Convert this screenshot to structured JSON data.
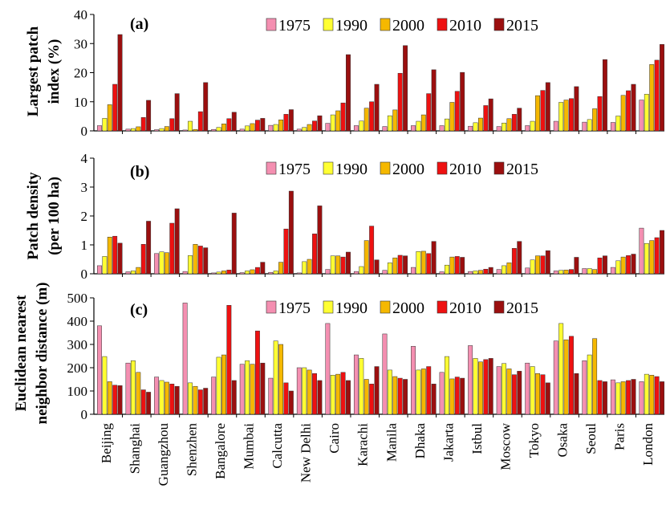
{
  "colors": {
    "s1975": "#f48fb1",
    "s1990": "#ffff33",
    "s2000": "#f5b800",
    "s2010": "#ee1111",
    "s2015": "#9b0f0f"
  },
  "chart_data": [
    {
      "type": "bar",
      "panel": "(a)",
      "title": "",
      "ylabel": [
        "Largest patch",
        "index (%)"
      ],
      "ylim": [
        0,
        40
      ],
      "yticks": [
        0,
        10,
        20,
        30,
        40
      ],
      "categories": [
        "Beijing",
        "Shanghai",
        "Guangzhou",
        "Shenzhen",
        "Bangalore",
        "Mumbai",
        "Calcutta",
        "New Delhi",
        "Cairo",
        "Karachi",
        "Manila",
        "Dhaka",
        "Jakarta",
        "Istbul",
        "Moscow",
        "Tokyo",
        "Osaka",
        "Seoul",
        "Paris",
        "London"
      ],
      "legend": [
        "1975",
        "1990",
        "2000",
        "2010",
        "2015"
      ],
      "series": [
        {
          "name": "1975",
          "values": [
            1.8,
            0.6,
            0.4,
            0.3,
            0.5,
            0.6,
            1.9,
            0.6,
            2.6,
            1.8,
            1.5,
            1.8,
            1.8,
            1.6,
            1.5,
            1.8,
            3.3,
            3.0,
            2.9,
            10.6
          ]
        },
        {
          "name": "1990",
          "values": [
            4.3,
            0.8,
            0.8,
            3.3,
            1.2,
            1.7,
            2.2,
            1.2,
            5.5,
            3.4,
            5.2,
            3.3,
            4.1,
            2.8,
            2.7,
            3.3,
            9.8,
            3.9,
            5.1,
            12.6
          ]
        },
        {
          "name": "2000",
          "values": [
            9.0,
            1.4,
            1.5,
            0.5,
            2.4,
            2.5,
            3.8,
            2.2,
            6.9,
            7.8,
            7.2,
            5.5,
            9.8,
            4.4,
            4.2,
            12.1,
            10.6,
            7.6,
            12.2,
            22.8
          ]
        },
        {
          "name": "2010",
          "values": [
            16.0,
            4.6,
            4.2,
            6.6,
            4.2,
            3.7,
            5.7,
            3.4,
            9.6,
            10.0,
            19.8,
            12.8,
            13.6,
            8.7,
            5.7,
            13.9,
            11.1,
            11.8,
            13.8,
            24.3
          ]
        },
        {
          "name": "2015",
          "values": [
            33.1,
            10.5,
            12.8,
            16.6,
            6.4,
            4.3,
            7.3,
            5.2,
            26.2,
            16.0,
            29.3,
            21.0,
            20.1,
            11.0,
            7.8,
            16.6,
            15.2,
            24.5,
            16.0,
            29.7
          ]
        }
      ]
    },
    {
      "type": "bar",
      "panel": "(b)",
      "title": "",
      "ylabel": [
        "Patch density",
        "(per 100 ha)"
      ],
      "ylim": [
        0,
        4
      ],
      "yticks": [
        0,
        1,
        2,
        3,
        4
      ],
      "categories": [
        "Beijing",
        "Shanghai",
        "Guangzhou",
        "Shenzhen",
        "Bangalore",
        "Mumbai",
        "Calcutta",
        "New Delhi",
        "Cairo",
        "Karachi",
        "Manila",
        "Dhaka",
        "Jakarta",
        "Istbul",
        "Moscow",
        "Tokyo",
        "Osaka",
        "Seoul",
        "Paris",
        "London"
      ],
      "legend": [
        "1975",
        "1990",
        "2000",
        "2010",
        "2015"
      ],
      "series": [
        {
          "name": "1975",
          "values": [
            0.28,
            0.07,
            0.7,
            0.08,
            0.03,
            0.04,
            0.05,
            0.03,
            0.15,
            0.08,
            0.12,
            0.22,
            0.07,
            0.08,
            0.15,
            0.2,
            0.1,
            0.18,
            0.22,
            1.58
          ]
        },
        {
          "name": "1990",
          "values": [
            0.6,
            0.1,
            0.76,
            0.63,
            0.06,
            0.1,
            0.1,
            0.42,
            0.62,
            0.25,
            0.38,
            0.77,
            0.3,
            0.1,
            0.28,
            0.48,
            0.12,
            0.18,
            0.45,
            1.05
          ]
        },
        {
          "name": "2000",
          "values": [
            1.27,
            0.22,
            0.73,
            1.02,
            0.1,
            0.14,
            0.4,
            0.5,
            0.62,
            1.15,
            0.55,
            0.78,
            0.58,
            0.12,
            0.38,
            0.62,
            0.13,
            0.15,
            0.58,
            1.15
          ]
        },
        {
          "name": "2010",
          "values": [
            1.3,
            1.02,
            1.75,
            0.96,
            0.13,
            0.22,
            1.55,
            1.38,
            0.58,
            1.65,
            0.64,
            0.7,
            0.6,
            0.16,
            0.88,
            0.62,
            0.15,
            0.55,
            0.63,
            1.25
          ]
        },
        {
          "name": "2015",
          "values": [
            1.06,
            1.82,
            2.25,
            0.9,
            2.1,
            0.4,
            2.86,
            2.35,
            0.75,
            0.48,
            0.62,
            1.12,
            0.57,
            0.22,
            1.12,
            0.8,
            0.57,
            0.62,
            0.68,
            1.5
          ]
        }
      ]
    },
    {
      "type": "bar",
      "panel": "(c)",
      "title": "",
      "ylabel": [
        "Euclidean nearest",
        "neighbor distance (m)"
      ],
      "ylim": [
        0,
        500
      ],
      "yticks": [
        0,
        100,
        200,
        300,
        400,
        500
      ],
      "categories": [
        "Beijing",
        "Shanghai",
        "Guangzhou",
        "Shenzhen",
        "Bangalore",
        "Mumbai",
        "Calcutta",
        "New Delhi",
        "Cairo",
        "Karachi",
        "Manila",
        "Dhaka",
        "Jakarta",
        "Istbul",
        "Moscow",
        "Tokyo",
        "Osaka",
        "Seoul",
        "Paris",
        "London"
      ],
      "legend": [
        "1975",
        "1990",
        "2000",
        "2010",
        "2015"
      ],
      "series": [
        {
          "name": "1975",
          "values": [
            380,
            220,
            160,
            478,
            160,
            215,
            155,
            200,
            390,
            255,
            345,
            292,
            180,
            295,
            205,
            220,
            315,
            230,
            148,
            140
          ]
        },
        {
          "name": "1990",
          "values": [
            248,
            230,
            145,
            135,
            245,
            230,
            315,
            200,
            168,
            240,
            190,
            190,
            248,
            240,
            218,
            205,
            390,
            255,
            135,
            172
          ]
        },
        {
          "name": "2000",
          "values": [
            140,
            180,
            138,
            120,
            255,
            215,
            300,
            190,
            172,
            150,
            162,
            195,
            152,
            225,
            195,
            175,
            320,
            325,
            140,
            168
          ]
        },
        {
          "name": "2010",
          "values": [
            125,
            105,
            130,
            105,
            468,
            358,
            135,
            175,
            180,
            130,
            155,
            205,
            160,
            235,
            170,
            170,
            335,
            145,
            145,
            162
          ]
        },
        {
          "name": "2015",
          "values": [
            123,
            95,
            120,
            112,
            145,
            220,
            100,
            145,
            145,
            205,
            150,
            130,
            155,
            240,
            185,
            135,
            175,
            140,
            150,
            140
          ]
        }
      ]
    }
  ]
}
